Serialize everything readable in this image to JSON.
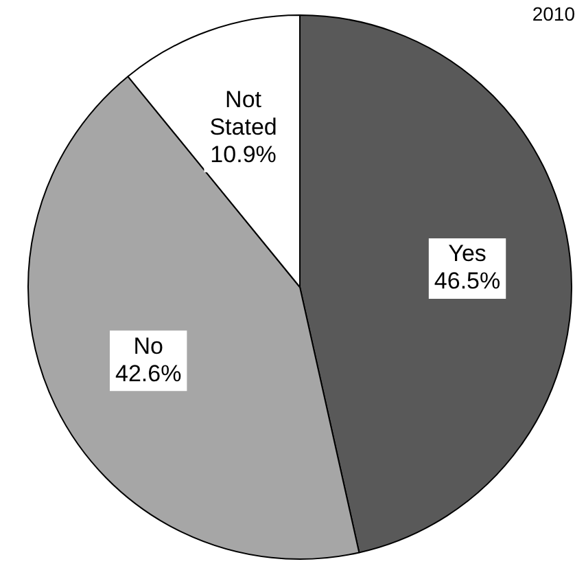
{
  "chart_data": {
    "type": "pie",
    "title": "2010",
    "categories": [
      "Yes",
      "No",
      "Not Stated"
    ],
    "values": [
      46.5,
      42.6,
      10.9
    ],
    "value_labels": [
      "46.5%",
      "42.6%",
      "10.9%"
    ],
    "colors": [
      "#595959",
      "#a6a6a6",
      "#ffffff"
    ],
    "legend": false
  }
}
